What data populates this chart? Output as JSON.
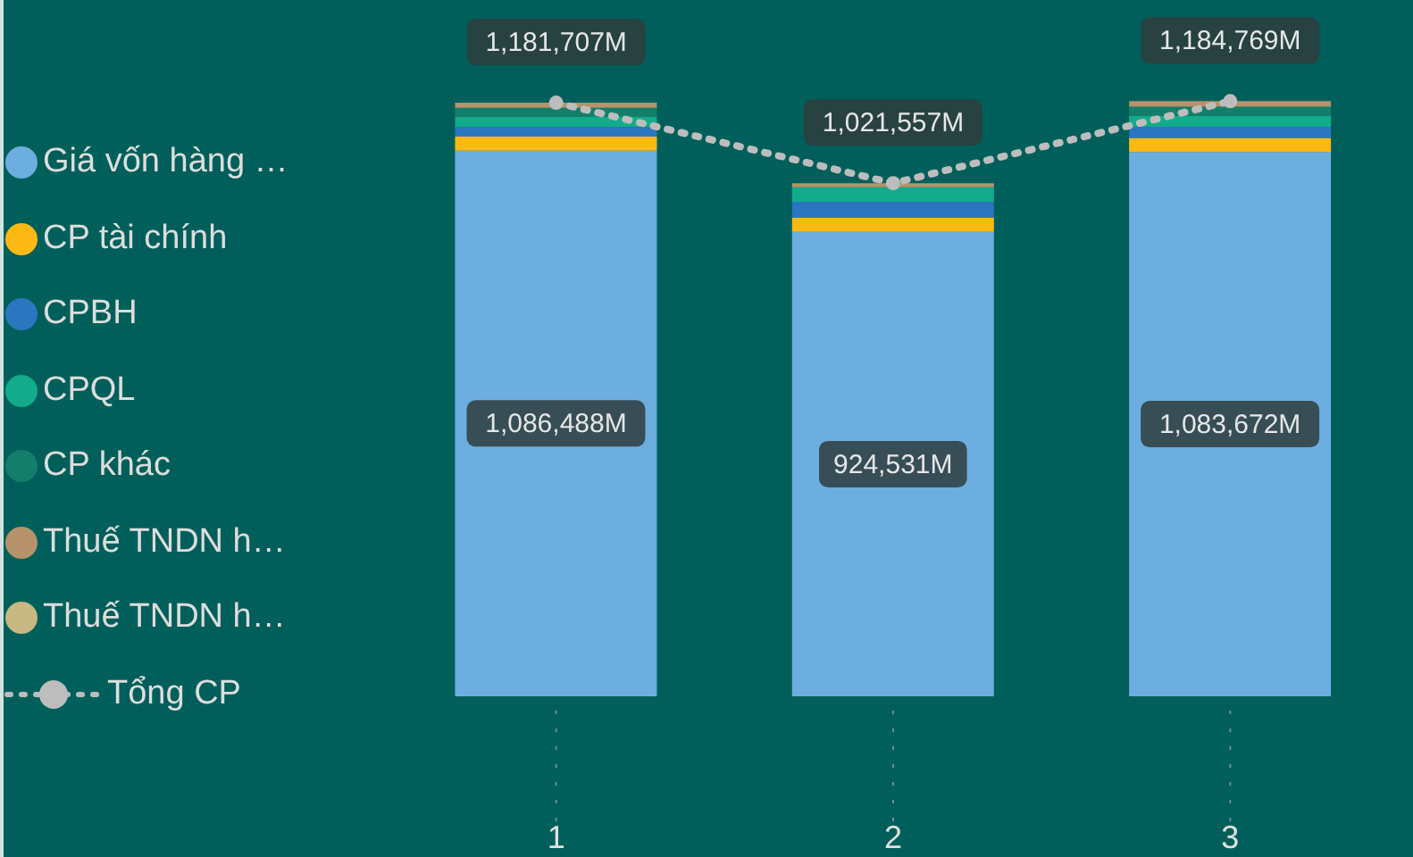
{
  "chart_data": {
    "type": "bar",
    "stacked": true,
    "categories": [
      "1",
      "2",
      "3"
    ],
    "legend": "left",
    "grid": false,
    "marker": "circle",
    "series": [
      {
        "name": "Giá vốn hàng …",
        "color": "#6caee0",
        "values": [
          1086488,
          924531,
          1083672
        ],
        "value_labels": [
          "1,086,488M",
          "924,531M",
          "1,083,672M"
        ]
      },
      {
        "name": "CP tài chính",
        "color": "#fdb913",
        "values": [
          28000,
          28000,
          28000
        ]
      },
      {
        "name": "CPBH",
        "color": "#2a77c0",
        "values": [
          19000,
          32000,
          22000
        ]
      },
      {
        "name": "CPQL",
        "color": "#12ac8c",
        "values": [
          20000,
          29000,
          22000
        ]
      },
      {
        "name": "CP khác",
        "color": "#137f6a",
        "values": [
          18000,
          0,
          18000
        ]
      },
      {
        "name": "Thuế TNDN h…",
        "color": "#b6936c",
        "values": [
          10219,
          8026,
          11097
        ]
      },
      {
        "name": "Thuế TNDN h…",
        "color": "#c8b882",
        "values": [
          0,
          0,
          0
        ]
      },
      {
        "name": "Tổng CP",
        "type": "line",
        "line_style": "dotted",
        "color": "#bdbdbd",
        "values": [
          1181707,
          1021557,
          1184769
        ],
        "value_labels": [
          "1,181,707M",
          "1,021,557M",
          "1,184,769M"
        ]
      }
    ]
  }
}
